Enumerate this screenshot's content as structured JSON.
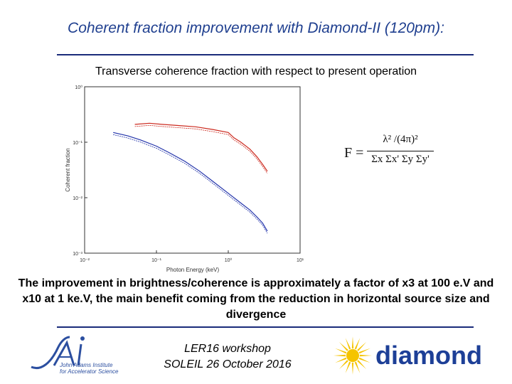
{
  "slide": {
    "title": "Coherent fraction improvement with Diamond-II (120pm):",
    "subtitle": "Transverse coherence fraction with respect to present operation",
    "body": "The improvement in brightness/coherence is approximately a factor of x3 at 100 e.V and x10 at 1 ke.V, the main benefit coming from the reduction in horizontal source size and divergence",
    "footer_line1": "LER16 workshop",
    "footer_line2": "SOLEIL 26 October 2016"
  },
  "formula": {
    "lhs": "F =",
    "numerator": "λ² /(4π)²",
    "denominator": "Σx Σx' Σy Σy'"
  },
  "logos": {
    "jai": {
      "mark": "JAI",
      "line1": "John Adams Institute",
      "line2": "for Accelerator Science"
    },
    "diamond": {
      "wordmark": "diamond",
      "color": "#1d3f97",
      "sun_color": "#f5c400"
    }
  },
  "colors": {
    "title": "#1f3f8f",
    "rule": "#1a2b7a"
  },
  "chart_data": {
    "type": "line",
    "xlabel": "Photon Energy (keV)",
    "ylabel": "Coherent fraction",
    "xscale": "log",
    "yscale": "log",
    "xlim": [
      0.01,
      10
    ],
    "ylim": [
      0.001,
      1
    ],
    "xticks": [
      "10⁻²",
      "10⁻¹",
      "10⁰",
      "10¹"
    ],
    "xtick_values": [
      0.01,
      0.1,
      1,
      10
    ],
    "yticks": [
      "10⁻³",
      "10⁻²",
      "10⁻¹",
      "10⁰"
    ],
    "ytick_values": [
      0.001,
      0.01,
      0.1,
      1
    ],
    "grid": false,
    "series": [
      {
        "color": "#cc2a1f",
        "x": [
          0.05,
          0.08,
          0.12,
          0.2,
          0.35,
          0.6,
          1.0,
          1.2,
          1.5,
          2.0,
          2.5,
          3.0,
          3.5
        ],
        "y": [
          0.21,
          0.22,
          0.21,
          0.2,
          0.19,
          0.17,
          0.15,
          0.12,
          0.1,
          0.075,
          0.055,
          0.04,
          0.03
        ]
      },
      {
        "color": "#2233aa",
        "x": [
          0.025,
          0.04,
          0.06,
          0.1,
          0.15,
          0.25,
          0.4,
          0.6,
          1.0,
          1.5,
          2.0,
          2.5,
          3.0,
          3.5
        ],
        "y": [
          0.15,
          0.13,
          0.11,
          0.085,
          0.065,
          0.045,
          0.03,
          0.02,
          0.012,
          0.008,
          0.006,
          0.0045,
          0.0035,
          0.0025
        ]
      }
    ]
  }
}
